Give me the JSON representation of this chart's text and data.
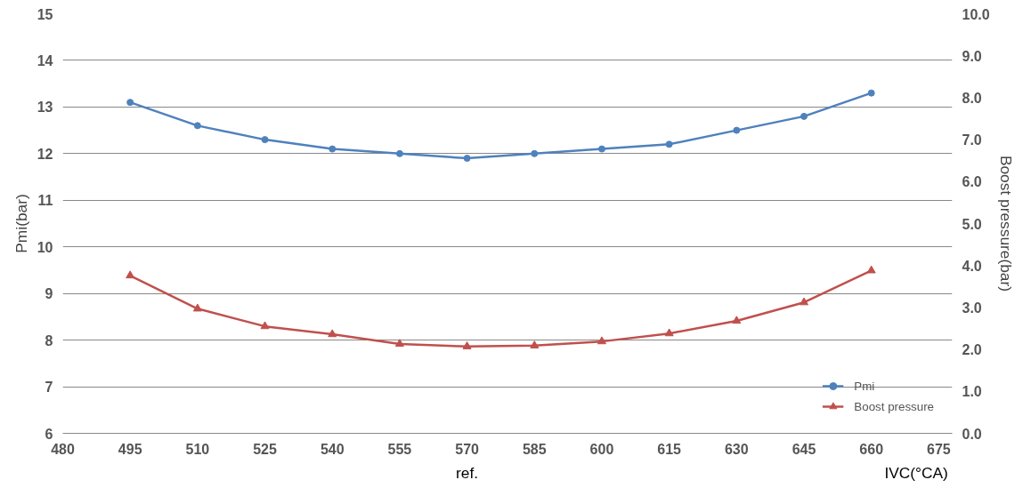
{
  "chart_data": {
    "type": "line",
    "xlabel": "IVC(°CA)",
    "ylabel": "Pmi(bar)",
    "y2label": "Boost pressure(bar)",
    "x": [
      495,
      510,
      525,
      540,
      555,
      570,
      585,
      600,
      615,
      630,
      645,
      660
    ],
    "series": [
      {
        "name": "Pmi",
        "color": "#4f81bd",
        "marker": "circle",
        "values": [
          13.1,
          12.6,
          12.3,
          12.1,
          12.0,
          11.9,
          12.0,
          12.1,
          12.2,
          12.5,
          12.8,
          13.3
        ]
      },
      {
        "name": "Boost pressure",
        "color": "#c0504d",
        "marker": "triangle",
        "axis": "y2",
        "values": [
          3.76,
          2.97,
          2.55,
          2.36,
          2.13,
          2.07,
          2.09,
          2.19,
          2.38,
          2.68,
          3.12,
          3.88
        ]
      }
    ],
    "xlim": [
      480,
      678
    ],
    "xticks": [
      480,
      495,
      510,
      525,
      540,
      555,
      570,
      585,
      600,
      615,
      630,
      645,
      660,
      675
    ],
    "ylim": [
      6,
      15
    ],
    "yticks": [
      6,
      7,
      8,
      9,
      10,
      11,
      12,
      13,
      14,
      15
    ],
    "y2lim": [
      0,
      10
    ],
    "y2ticks": [
      {
        "value": 0,
        "label": "0.0"
      },
      {
        "value": 1,
        "label": "1.0"
      },
      {
        "value": 2,
        "label": "2.0"
      },
      {
        "value": 3,
        "label": "3.0"
      },
      {
        "value": 4,
        "label": "4.0"
      },
      {
        "value": 5,
        "label": "5.0"
      },
      {
        "value": 6,
        "label": "6.0"
      },
      {
        "value": 7,
        "label": "7.0"
      },
      {
        "value": 8,
        "label": "8.0"
      },
      {
        "value": 9,
        "label": "9.0"
      },
      {
        "value": 10,
        "label": "10.0"
      }
    ],
    "annotations": [
      "ref."
    ],
    "grid": "y",
    "legend": "bottom right",
    "line_style": "solid"
  }
}
